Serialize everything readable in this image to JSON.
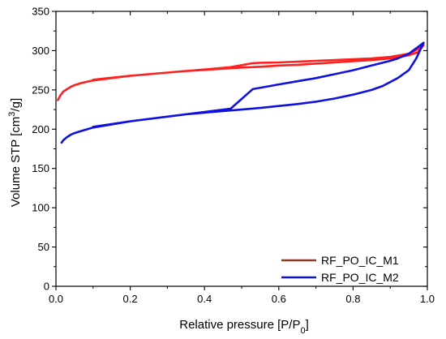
{
  "chart_data": {
    "type": "line",
    "title": "",
    "xlabel_main": "Relative pressure [P/P",
    "xlabel_sub": "0",
    "xlabel_end": "]",
    "ylabel_main": "Volume STP [cm",
    "ylabel_sup": "3",
    "ylabel_end": "/g]",
    "xlim": [
      0.0,
      1.0
    ],
    "ylim": [
      0,
      350
    ],
    "xticks": [
      "0.0",
      "0.2",
      "0.4",
      "0.6",
      "0.8",
      "1.0"
    ],
    "yticks": [
      "0",
      "50",
      "100",
      "150",
      "200",
      "250",
      "300",
      "350"
    ],
    "legend_position": "bottom-right",
    "series": [
      {
        "name": "RF_PO_IC_M1",
        "color": "#ff2020",
        "legend_color": "#8b3a1a",
        "x": [
          0.005,
          0.012,
          0.02,
          0.03,
          0.04,
          0.05,
          0.07,
          0.1,
          0.15,
          0.2,
          0.25,
          0.3,
          0.35,
          0.4,
          0.45,
          0.5,
          0.55,
          0.6,
          0.65,
          0.7,
          0.75,
          0.8,
          0.85,
          0.9,
          0.95,
          0.975,
          0.99,
          0.975,
          0.95,
          0.9,
          0.85,
          0.8,
          0.75,
          0.7,
          0.65,
          0.6,
          0.55,
          0.53,
          0.47,
          0.4,
          0.3,
          0.2,
          0.1
        ],
        "y": [
          237,
          243,
          248,
          251,
          254,
          256,
          259,
          262,
          265,
          268,
          270,
          272,
          274,
          275.5,
          277,
          278.5,
          279.5,
          281,
          282,
          283.5,
          285,
          286.5,
          288,
          290,
          294,
          298,
          307,
          302,
          296,
          292,
          290,
          289,
          288,
          287,
          286,
          285,
          284.5,
          284,
          279,
          276,
          272,
          268,
          263
        ]
      },
      {
        "name": "RF_PO_IC_M2",
        "color": "#1010e0",
        "legend_color": "#1010e0",
        "x": [
          0.015,
          0.02,
          0.03,
          0.04,
          0.05,
          0.07,
          0.1,
          0.15,
          0.2,
          0.25,
          0.3,
          0.35,
          0.4,
          0.45,
          0.5,
          0.55,
          0.6,
          0.65,
          0.7,
          0.75,
          0.8,
          0.85,
          0.88,
          0.92,
          0.95,
          0.97,
          0.99,
          0.97,
          0.95,
          0.92,
          0.9,
          0.85,
          0.8,
          0.75,
          0.7,
          0.65,
          0.6,
          0.53,
          0.47,
          0.4,
          0.3,
          0.2,
          0.1
        ],
        "y": [
          183,
          186,
          190,
          193,
          195,
          198,
          202,
          206,
          210,
          213,
          216,
          219,
          221,
          223,
          225,
          227,
          229.5,
          232,
          235,
          239,
          244,
          250,
          255,
          265,
          275,
          290,
          310,
          303,
          296,
          290,
          287,
          281,
          275,
          270,
          265,
          261,
          257,
          251,
          226,
          222,
          216,
          210,
          203
        ]
      }
    ]
  }
}
